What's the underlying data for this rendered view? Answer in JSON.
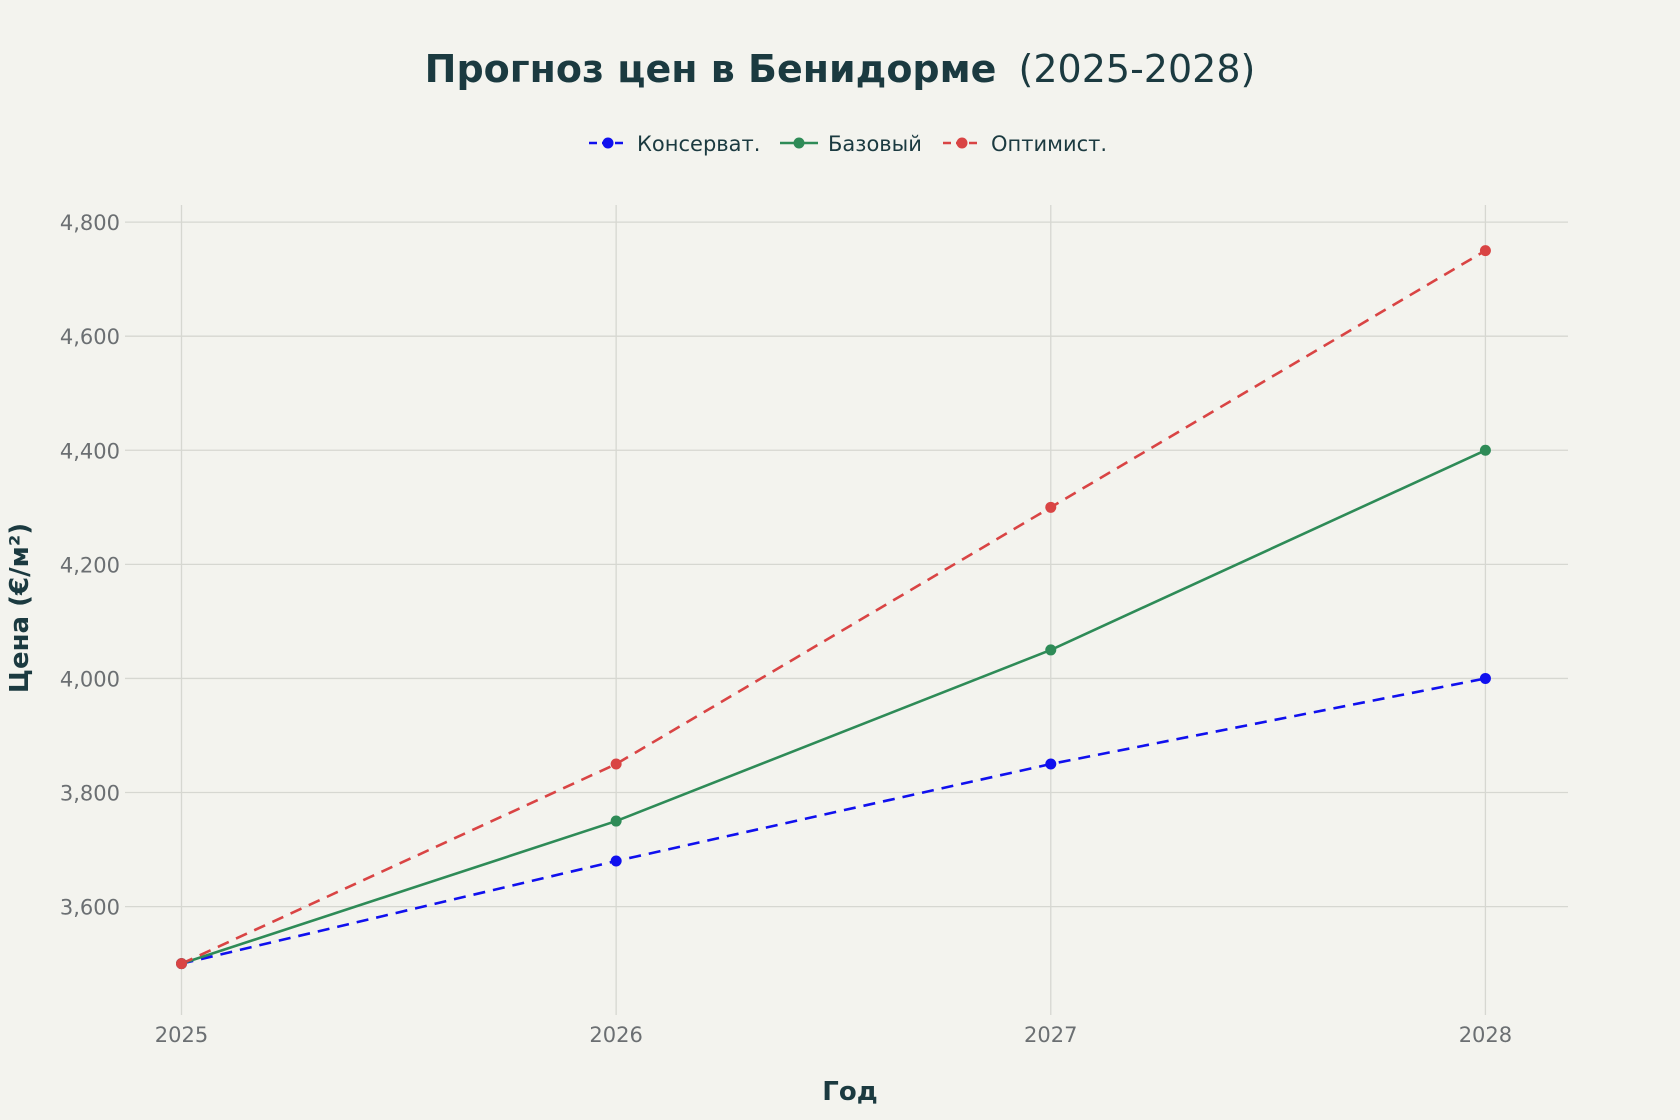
{
  "chart_data": {
    "type": "line",
    "title_main": "Прогноз цен в Бенидорме",
    "title_suffix": "(2025-2028)",
    "xlabel": "Год",
    "ylabel": "Цена (€/м²)",
    "x": [
      2025,
      2026,
      2027,
      2028
    ],
    "x_tick_labels": [
      "2025",
      "2026",
      "2027",
      "2028"
    ],
    "xlim": [
      2024.87,
      2028.19
    ],
    "ylim": [
      3410,
      4830
    ],
    "y_ticks": [
      3600,
      3800,
      4000,
      4200,
      4400,
      4600,
      4800
    ],
    "y_tick_labels": [
      "3,600",
      "3,800",
      "4,000",
      "4,200",
      "4,400",
      "4,600",
      "4,800"
    ],
    "grid": true,
    "legend_position": "top-center",
    "series": [
      {
        "name": "Консерват.",
        "values": [
          3500,
          3680,
          3850,
          4000
        ],
        "color": "#1010ee",
        "dash": "dashed"
      },
      {
        "name": "Базовый",
        "values": [
          3500,
          3750,
          4050,
          4400
        ],
        "color": "#2e8b57",
        "dash": "solid"
      },
      {
        "name": "Оптимист.",
        "values": [
          3500,
          3850,
          4300,
          4750
        ],
        "color": "#d94444",
        "dash": "dashed"
      }
    ],
    "colors": {
      "background": "#f3f3ee",
      "title": "#1b3a40",
      "grid": "#d6d7d1",
      "tick": "#6b6f72"
    }
  }
}
